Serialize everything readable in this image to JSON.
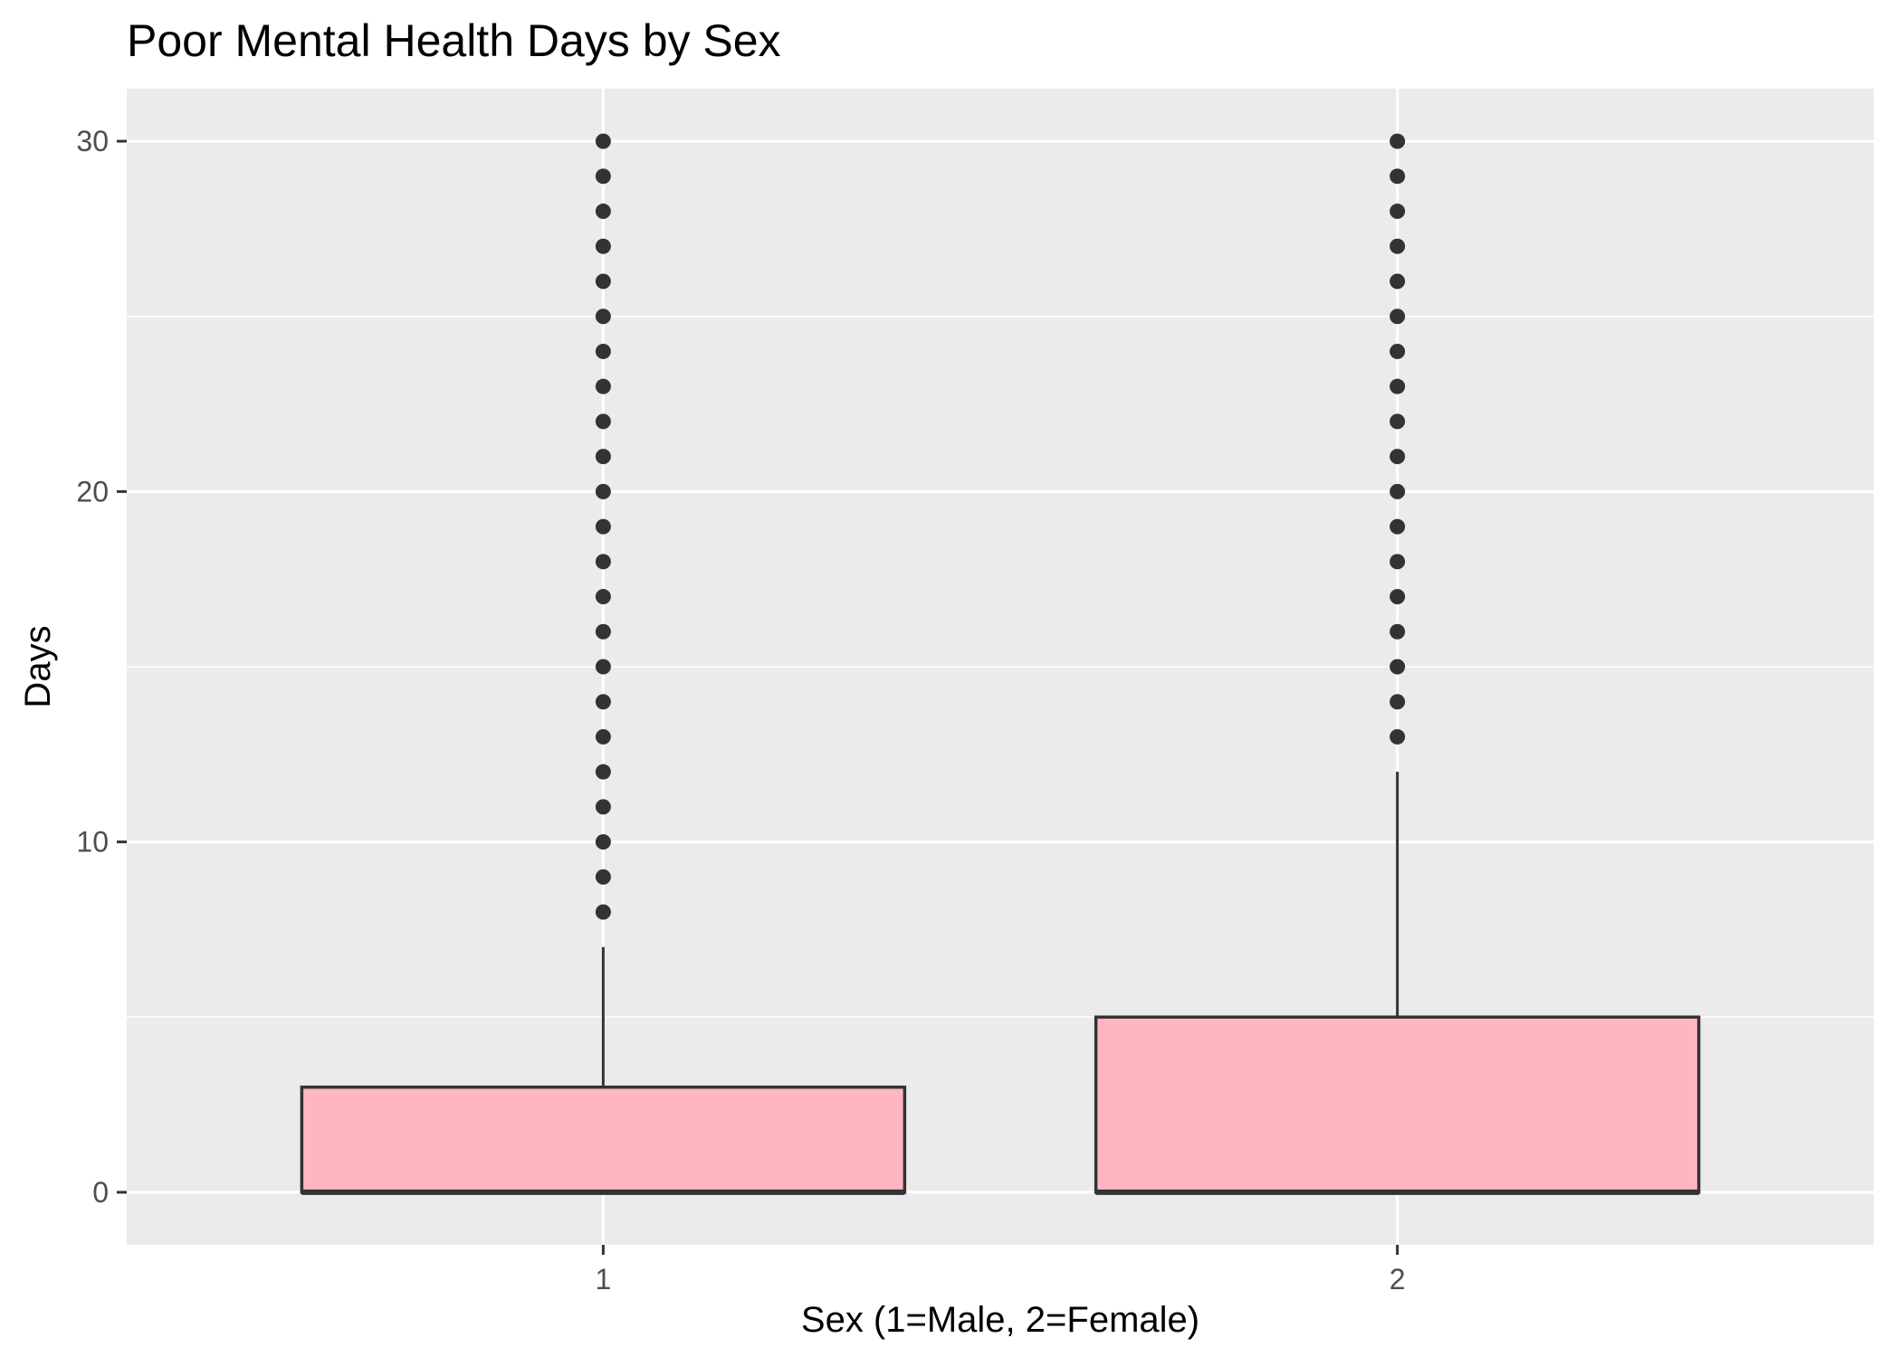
{
  "chart_data": {
    "type": "boxplot",
    "title": "Poor Mental Health Days by Sex",
    "xlabel": "Sex (1=Male, 2=Female)",
    "ylabel": "Days",
    "ylim": [
      -1.5,
      31.5
    ],
    "y_ticks": [
      0,
      10,
      20,
      30
    ],
    "y_minor_ticks": [
      5,
      15,
      25
    ],
    "categories": [
      "1",
      "2"
    ],
    "grid": true,
    "box_fill": "#FFB6C1",
    "box_stroke": "#333333",
    "panel_background": "#EBEBEB",
    "grid_color": "#FFFFFF",
    "boxes": [
      {
        "category": "1",
        "min": 0,
        "q1": 0,
        "median": 0,
        "q3": 3,
        "max": 7,
        "outliers": [
          8,
          9,
          10,
          11,
          12,
          13,
          14,
          15,
          16,
          17,
          18,
          19,
          20,
          21,
          22,
          23,
          24,
          25,
          26,
          27,
          28,
          29,
          30
        ]
      },
      {
        "category": "2",
        "min": 0,
        "q1": 0,
        "median": 0,
        "q3": 5,
        "max": 12,
        "outliers": [
          13,
          14,
          15,
          16,
          17,
          18,
          19,
          20,
          21,
          22,
          23,
          24,
          25,
          26,
          27,
          28,
          29,
          30
        ]
      }
    ]
  }
}
